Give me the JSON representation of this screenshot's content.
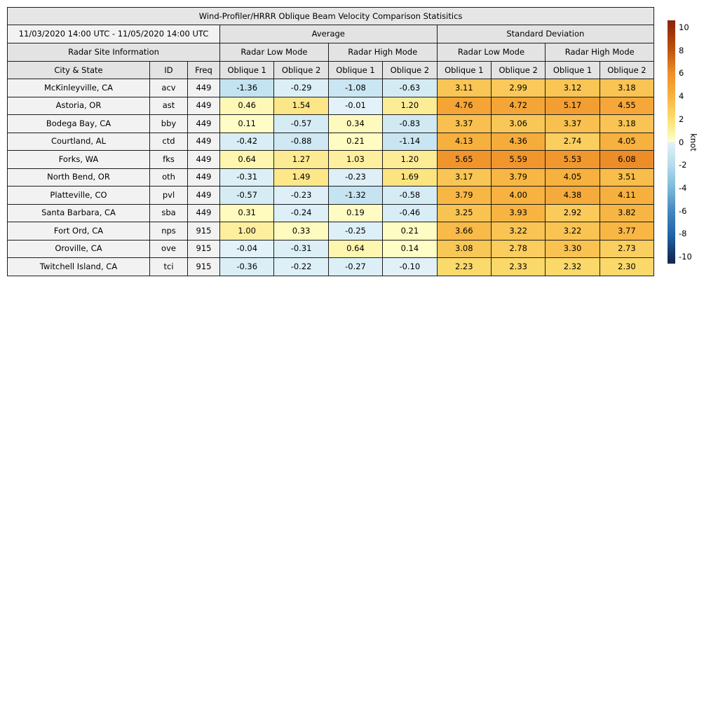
{
  "chart_data": {
    "type": "heatmap",
    "title": "Wind-Profiler/HRRR Oblique Beam Velocity Comparison Statisitics",
    "date_range": "11/03/2020 14:00 UTC - 11/05/2020 14:00 UTC",
    "site_info_header": "Radar Site Information",
    "group_headers": {
      "average": "Average",
      "std": "Standard Deviation"
    },
    "mode_headers": {
      "low": "Radar Low Mode",
      "high": "Radar High Mode"
    },
    "column_headers": {
      "city": "City & State",
      "id": "ID",
      "freq": "Freq",
      "oblique1": "Oblique 1",
      "oblique2": "Oblique 2"
    },
    "value_columns": [
      "avg_low_oblique1",
      "avg_low_oblique2",
      "avg_high_oblique1",
      "avg_high_oblique2",
      "std_low_oblique1",
      "std_low_oblique2",
      "std_high_oblique1",
      "std_high_oblique2"
    ],
    "rows": [
      {
        "city": "McKinleyville, CA",
        "id": "acv",
        "freq": "449",
        "values": [
          -1.36,
          -0.29,
          -1.08,
          -0.63,
          3.11,
          2.99,
          3.12,
          3.18
        ]
      },
      {
        "city": "Astoria, OR",
        "id": "ast",
        "freq": "449",
        "values": [
          0.46,
          1.54,
          -0.01,
          1.2,
          4.76,
          4.72,
          5.17,
          4.55
        ]
      },
      {
        "city": "Bodega Bay, CA",
        "id": "bby",
        "freq": "449",
        "values": [
          0.11,
          -0.57,
          0.34,
          -0.83,
          3.37,
          3.06,
          3.37,
          3.18
        ]
      },
      {
        "city": "Courtland, AL",
        "id": "ctd",
        "freq": "449",
        "values": [
          -0.42,
          -0.88,
          0.21,
          -1.14,
          4.13,
          4.36,
          2.74,
          4.05
        ]
      },
      {
        "city": "Forks, WA",
        "id": "fks",
        "freq": "449",
        "values": [
          0.64,
          1.27,
          1.03,
          1.2,
          5.65,
          5.59,
          5.53,
          6.08
        ]
      },
      {
        "city": "North Bend, OR",
        "id": "oth",
        "freq": "449",
        "values": [
          -0.31,
          1.49,
          -0.23,
          1.69,
          3.17,
          3.79,
          4.05,
          3.51
        ]
      },
      {
        "city": "Platteville, CO",
        "id": "pvl",
        "freq": "449",
        "values": [
          -0.57,
          -0.23,
          -1.32,
          -0.58,
          3.79,
          4.0,
          4.38,
          4.11
        ]
      },
      {
        "city": "Santa Barbara, CA",
        "id": "sba",
        "freq": "449",
        "values": [
          0.31,
          -0.24,
          0.19,
          -0.46,
          3.25,
          3.93,
          2.92,
          3.82
        ]
      },
      {
        "city": "Fort Ord, CA",
        "id": "nps",
        "freq": "915",
        "values": [
          1.0,
          0.33,
          -0.25,
          0.21,
          3.66,
          3.22,
          3.22,
          3.77
        ]
      },
      {
        "city": "Oroville, CA",
        "id": "ove",
        "freq": "915",
        "values": [
          -0.04,
          -0.31,
          0.64,
          0.14,
          3.08,
          2.78,
          3.3,
          2.73
        ]
      },
      {
        "city": "Twitchell Island, CA",
        "id": "tci",
        "freq": "915",
        "values": [
          -0.36,
          -0.22,
          -0.27,
          -0.1,
          2.23,
          2.33,
          2.32,
          2.3
        ]
      }
    ],
    "colorbar": {
      "unit": "knot",
      "ticks": [
        10,
        8,
        6,
        4,
        2,
        0,
        -2,
        -4,
        -6,
        -8,
        -10
      ],
      "vmin": -10.6,
      "vmax": 10.6,
      "colormap": {
        "positive_stops": [
          [
            0,
            "#ffffcc"
          ],
          [
            2,
            "#fcdf72"
          ],
          [
            4,
            "#f7b23f"
          ],
          [
            6,
            "#ee8f28"
          ],
          [
            8,
            "#c1520e"
          ],
          [
            10,
            "#932d07"
          ]
        ],
        "negative_stops": [
          [
            0,
            "#e3f2f8"
          ],
          [
            2,
            "#b5dcec"
          ],
          [
            4,
            "#7db8da"
          ],
          [
            6,
            "#4389be"
          ],
          [
            8,
            "#2166ac"
          ],
          [
            10,
            "#16305e"
          ]
        ],
        "clamp_high": "#882705",
        "clamp_low": "#112a52"
      }
    },
    "styles": {
      "header_bg": "#e3e3e3",
      "row_bg": "#f2f2f2",
      "border": "#1c1c1c"
    }
  }
}
